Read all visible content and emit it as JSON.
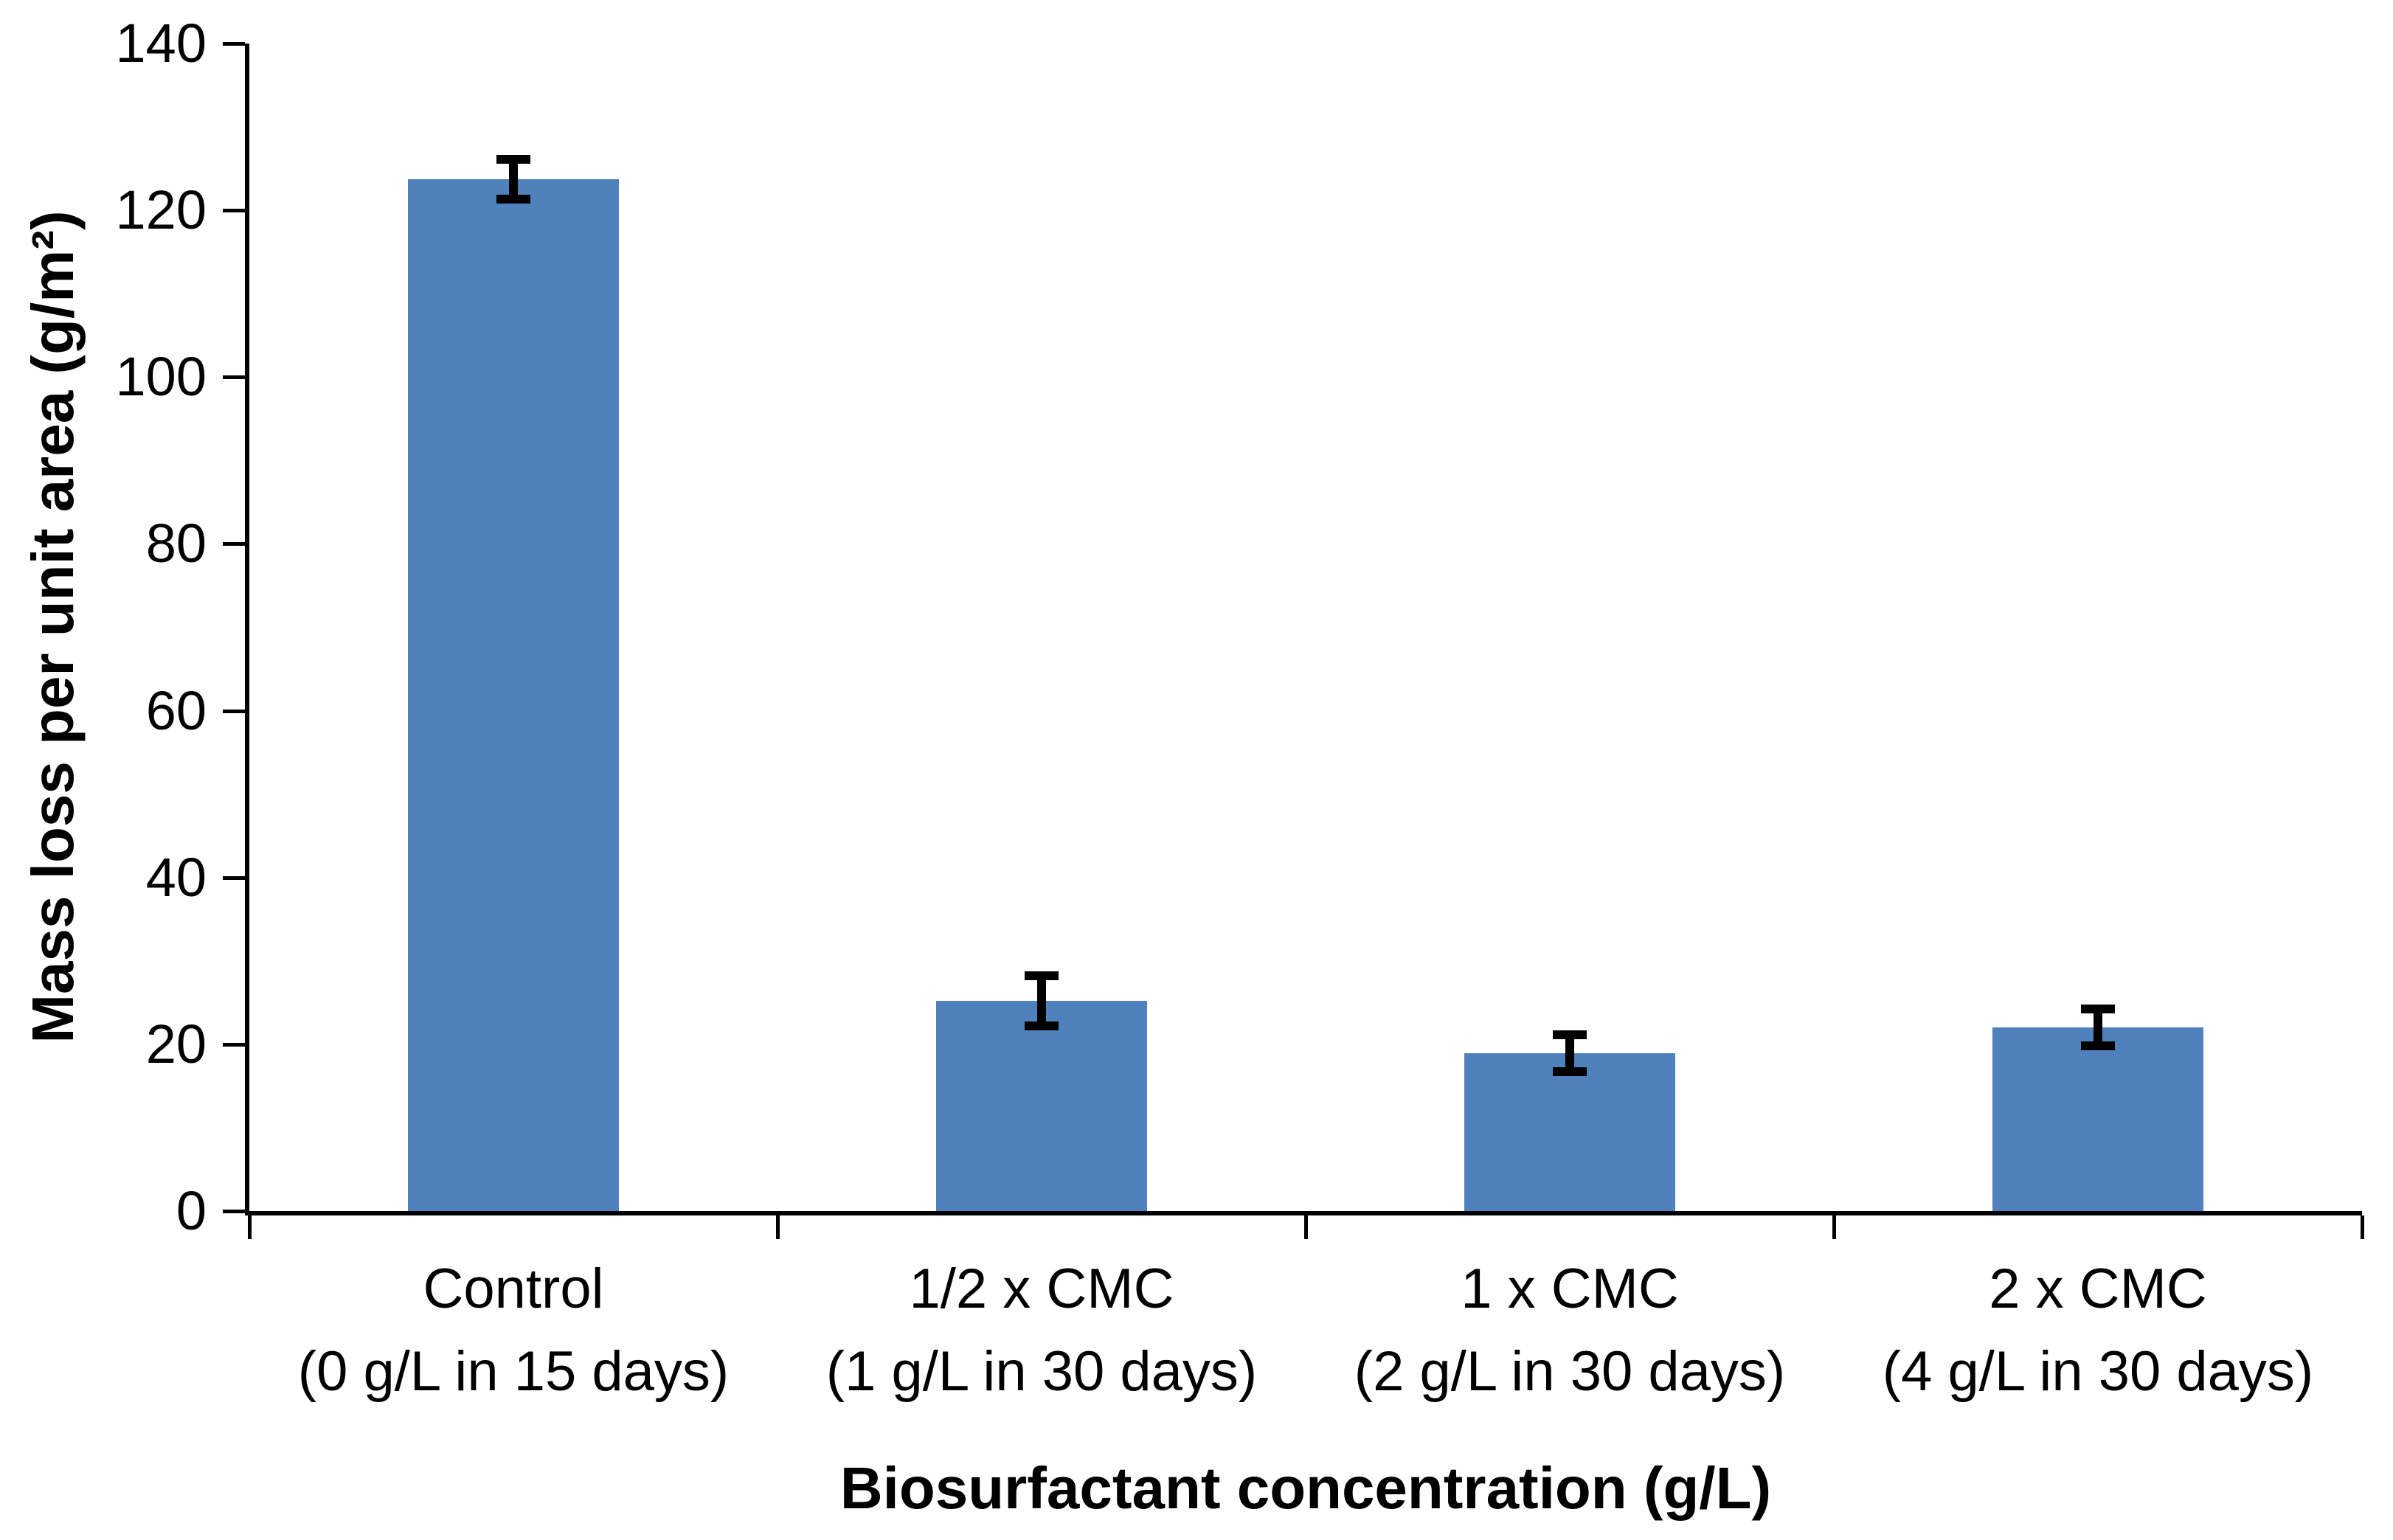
{
  "chart_data": {
    "type": "bar",
    "title": "",
    "xlabel": "Biosurfactant concentration (g/L)",
    "ylabel": "Mass loss per unit area (g/m²)",
    "ylim": [
      0,
      140
    ],
    "yticks": [
      0,
      20,
      40,
      60,
      80,
      100,
      120,
      140
    ],
    "grid": false,
    "legend": null,
    "bar_color": "#4F81BD",
    "error_bar_color": "#000000",
    "axis_color": "#000000",
    "categories": [
      {
        "line1": "Control",
        "line2": "(0 g/L in 15 days)"
      },
      {
        "line1": "1/2 x CMC",
        "line2": "(1 g/L in 30 days)"
      },
      {
        "line1": "1 x CMC",
        "line2": "(2 g/L in 30 days)"
      },
      {
        "line1": "2 x CMC",
        "line2": "(4 g/L in 30 days)"
      }
    ],
    "values": [
      123.7,
      25.2,
      18.9,
      22.0
    ],
    "errors": [
      2.4,
      3.0,
      2.2,
      2.2
    ]
  }
}
